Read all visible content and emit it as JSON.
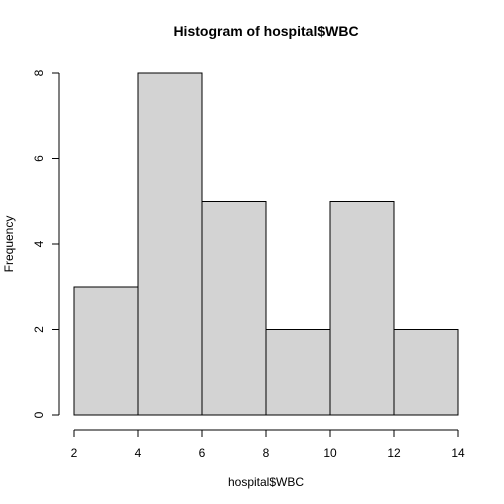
{
  "chart_data": {
    "type": "bar",
    "title": "Histogram of hospital$WBC",
    "xlabel": "hospital$WBC",
    "ylabel": "Frequency",
    "bins": [
      {
        "x0": 2,
        "x1": 4,
        "value": 3
      },
      {
        "x0": 4,
        "x1": 6,
        "value": 8
      },
      {
        "x0": 6,
        "x1": 8,
        "value": 5
      },
      {
        "x0": 8,
        "x1": 10,
        "value": 2
      },
      {
        "x0": 10,
        "x1": 12,
        "value": 5
      },
      {
        "x0": 12,
        "x1": 14,
        "value": 2
      }
    ],
    "x_ticks": [
      "2",
      "4",
      "6",
      "8",
      "10",
      "12",
      "14"
    ],
    "y_ticks": [
      "0",
      "2",
      "4",
      "6",
      "8"
    ],
    "xlim": [
      2,
      14
    ],
    "ylim": [
      0,
      8
    ],
    "grid": false,
    "colors": {
      "bar_fill": "#d3d3d3",
      "bar_stroke": "#000000",
      "axis": "#000000",
      "text": "#000000",
      "background": "#ffffff"
    }
  }
}
